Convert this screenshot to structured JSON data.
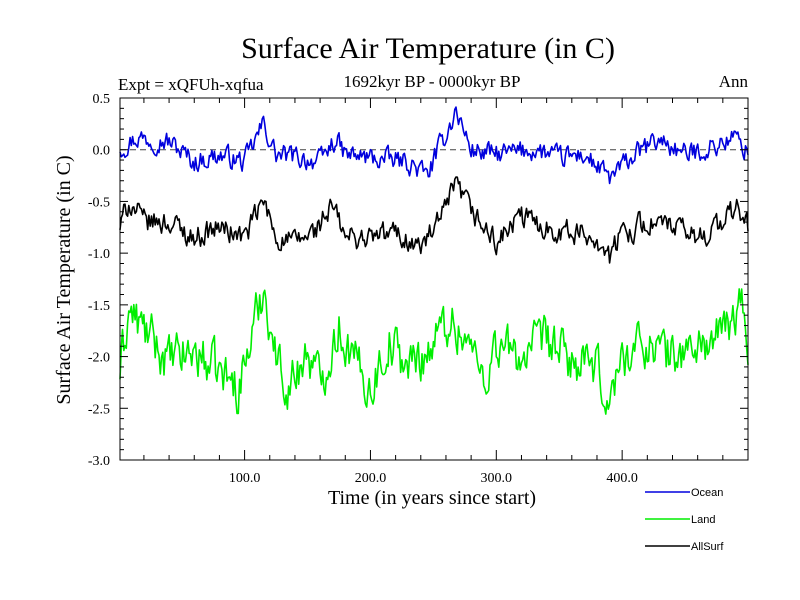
{
  "chart_data": {
    "type": "line",
    "title": "Surface Air Temperature (in C)",
    "subtitle": "1692kyr BP - 0000kyr BP",
    "expt_label": "Expt = xQFUh-xqfua",
    "season_label": "Ann",
    "xlabel": "Time (in years since start)",
    "ylabel": "Surface Air Temperature (in C)",
    "xlim": [
      1,
      500
    ],
    "ylim": [
      -3.0,
      0.5
    ],
    "x_ticks": [
      {
        "value": 100,
        "label": "100.0"
      },
      {
        "value": 200,
        "label": "200.0"
      },
      {
        "value": 300,
        "label": "300.0"
      },
      {
        "value": 400,
        "label": "400.0"
      }
    ],
    "y_ticks": [
      {
        "value": 0.5,
        "label": "0.5"
      },
      {
        "value": 0.0,
        "label": "0.0"
      },
      {
        "value": -0.5,
        "label": "-0.5"
      },
      {
        "value": -1.0,
        "label": "-1.0"
      },
      {
        "value": -1.5,
        "label": "-1.5"
      },
      {
        "value": -2.0,
        "label": "-2.0"
      },
      {
        "value": -2.5,
        "label": "-2.5"
      },
      {
        "value": -3.0,
        "label": "-3.0"
      }
    ],
    "reference_line": 0.0,
    "series": [
      {
        "name": "Ocean",
        "color": "#0000dd",
        "mean": -0.05,
        "amplitude": 0.09,
        "anchors": [
          [
            1,
            0.02
          ],
          [
            15,
            0.12
          ],
          [
            40,
            0.08
          ],
          [
            60,
            -0.12
          ],
          [
            80,
            -0.05
          ],
          [
            100,
            -0.12
          ],
          [
            115,
            0.25
          ],
          [
            125,
            -0.05
          ],
          [
            145,
            -0.08
          ],
          [
            160,
            -0.12
          ],
          [
            172,
            0.1
          ],
          [
            180,
            -0.05
          ],
          [
            200,
            -0.08
          ],
          [
            230,
            -0.12
          ],
          [
            245,
            -0.25
          ],
          [
            258,
            0.1
          ],
          [
            268,
            0.38
          ],
          [
            280,
            0.0
          ],
          [
            300,
            -0.05
          ],
          [
            330,
            0.0
          ],
          [
            350,
            -0.08
          ],
          [
            370,
            -0.05
          ],
          [
            390,
            -0.28
          ],
          [
            410,
            -0.05
          ],
          [
            430,
            0.1
          ],
          [
            450,
            -0.05
          ],
          [
            470,
            0.02
          ],
          [
            490,
            0.12
          ],
          [
            500,
            -0.02
          ]
        ]
      },
      {
        "name": "Land",
        "color": "#00ee00",
        "mean": -1.95,
        "amplitude": 0.2,
        "anchors": [
          [
            1,
            -2.15
          ],
          [
            8,
            -1.55
          ],
          [
            20,
            -1.75
          ],
          [
            40,
            -2.05
          ],
          [
            60,
            -1.95
          ],
          [
            80,
            -2.15
          ],
          [
            95,
            -2.3
          ],
          [
            108,
            -1.7
          ],
          [
            115,
            -1.3
          ],
          [
            125,
            -2.0
          ],
          [
            135,
            -2.3
          ],
          [
            150,
            -1.95
          ],
          [
            160,
            -2.25
          ],
          [
            175,
            -1.7
          ],
          [
            185,
            -2.0
          ],
          [
            200,
            -2.3
          ],
          [
            215,
            -1.85
          ],
          [
            230,
            -2.1
          ],
          [
            245,
            -1.95
          ],
          [
            262,
            -1.65
          ],
          [
            275,
            -1.8
          ],
          [
            290,
            -2.2
          ],
          [
            300,
            -1.9
          ],
          [
            320,
            -2.0
          ],
          [
            340,
            -1.85
          ],
          [
            360,
            -2.05
          ],
          [
            380,
            -2.15
          ],
          [
            390,
            -2.45
          ],
          [
            400,
            -2.0
          ],
          [
            420,
            -1.85
          ],
          [
            440,
            -2.0
          ],
          [
            460,
            -1.9
          ],
          [
            480,
            -1.8
          ],
          [
            495,
            -1.5
          ],
          [
            500,
            -1.9
          ]
        ]
      },
      {
        "name": "AllSurf",
        "color": "#000000",
        "mean": -0.75,
        "amplitude": 0.1,
        "anchors": [
          [
            1,
            -0.75
          ],
          [
            8,
            -0.5
          ],
          [
            20,
            -0.7
          ],
          [
            40,
            -0.7
          ],
          [
            60,
            -0.85
          ],
          [
            80,
            -0.75
          ],
          [
            100,
            -0.85
          ],
          [
            115,
            -0.5
          ],
          [
            125,
            -0.85
          ],
          [
            140,
            -0.9
          ],
          [
            155,
            -0.8
          ],
          [
            170,
            -0.55
          ],
          [
            180,
            -0.85
          ],
          [
            200,
            -0.85
          ],
          [
            220,
            -0.8
          ],
          [
            240,
            -0.95
          ],
          [
            255,
            -0.7
          ],
          [
            268,
            -0.35
          ],
          [
            280,
            -0.6
          ],
          [
            300,
            -0.9
          ],
          [
            320,
            -0.65
          ],
          [
            340,
            -0.75
          ],
          [
            360,
            -0.8
          ],
          [
            380,
            -0.85
          ],
          [
            390,
            -1.05
          ],
          [
            400,
            -0.8
          ],
          [
            420,
            -0.7
          ],
          [
            440,
            -0.75
          ],
          [
            460,
            -0.85
          ],
          [
            480,
            -0.7
          ],
          [
            492,
            -0.55
          ],
          [
            500,
            -0.75
          ]
        ]
      }
    ]
  }
}
